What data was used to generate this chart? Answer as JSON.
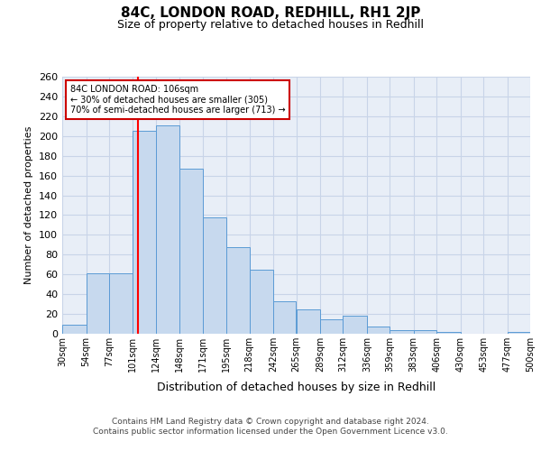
{
  "title": "84C, LONDON ROAD, REDHILL, RH1 2JP",
  "subtitle": "Size of property relative to detached houses in Redhill",
  "xlabel": "Distribution of detached houses by size in Redhill",
  "ylabel": "Number of detached properties",
  "tick_labels": [
    "30sqm",
    "54sqm",
    "77sqm",
    "101sqm",
    "124sqm",
    "148sqm",
    "171sqm",
    "195sqm",
    "218sqm",
    "242sqm",
    "265sqm",
    "289sqm",
    "312sqm",
    "336sqm",
    "359sqm",
    "383sqm",
    "406sqm",
    "430sqm",
    "453sqm",
    "477sqm",
    "500sqm"
  ],
  "bar_heights": [
    9,
    61,
    61,
    205,
    211,
    167,
    118,
    88,
    65,
    33,
    25,
    15,
    18,
    7,
    4,
    4,
    2,
    0,
    0,
    2
  ],
  "bar_color": "#c7d9ee",
  "bar_edge_color": "#5b9bd5",
  "grid_color": "#c8d4e8",
  "bg_color": "#e8eef7",
  "red_line_x": 106,
  "annotation_text": "84C LONDON ROAD: 106sqm\n← 30% of detached houses are smaller (305)\n70% of semi-detached houses are larger (713) →",
  "annotation_box_color": "#ffffff",
  "annotation_box_edge": "#cc0000",
  "ylim": [
    0,
    260
  ],
  "yticks": [
    0,
    20,
    40,
    60,
    80,
    100,
    120,
    140,
    160,
    180,
    200,
    220,
    240,
    260
  ],
  "footer_line1": "Contains HM Land Registry data © Crown copyright and database right 2024.",
  "footer_line2": "Contains public sector information licensed under the Open Government Licence v3.0."
}
